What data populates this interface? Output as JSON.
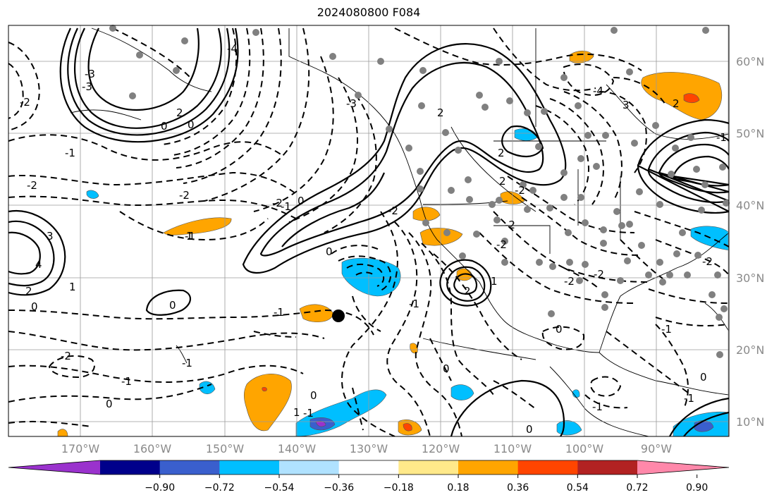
{
  "title": "2024080800 F084",
  "lat_labels": [
    "60°N",
    "50°N",
    "40°N",
    "30°N",
    "20°N",
    "10°N"
  ],
  "lon_labels": [
    "170°W",
    "160°W",
    "150°W",
    "140°W",
    "130°W",
    "120°W",
    "110°W",
    "100°W",
    "90°W"
  ],
  "colorbar": {
    "ticks": [
      "−0.90",
      "−0.72",
      "−0.54",
      "−0.36",
      "−0.18",
      "0.18",
      "0.36",
      "0.54",
      "0.72",
      "0.90"
    ],
    "colors": [
      "#9a32cd",
      "#00008b",
      "#3a5fcd",
      "#00bfff",
      "#b0e2ff",
      "#ffffff",
      "#ffe98a",
      "#ffa500",
      "#ff4500",
      "#b22222",
      "#ff88aa"
    ]
  },
  "contour_labels": [
    "0",
    "0",
    "-1",
    "-2",
    "-2",
    "-1",
    "-1",
    "2",
    "1",
    "3",
    "4",
    "2",
    "-2",
    "1",
    "0",
    "-2",
    "-1",
    "0",
    "-1",
    "-2",
    "0",
    "2",
    "2",
    "3",
    "-4",
    "-3",
    "-2",
    "2",
    "-2",
    "0",
    "-1",
    "-2",
    "-2",
    "-3",
    "-1",
    "0",
    "0",
    "-1",
    "-4",
    "-3",
    "-2",
    "-1",
    "0",
    "2",
    "1",
    "1",
    "-1",
    "0",
    "0",
    "2",
    "-2",
    "-1",
    "0",
    "-1",
    "-2"
  ]
}
